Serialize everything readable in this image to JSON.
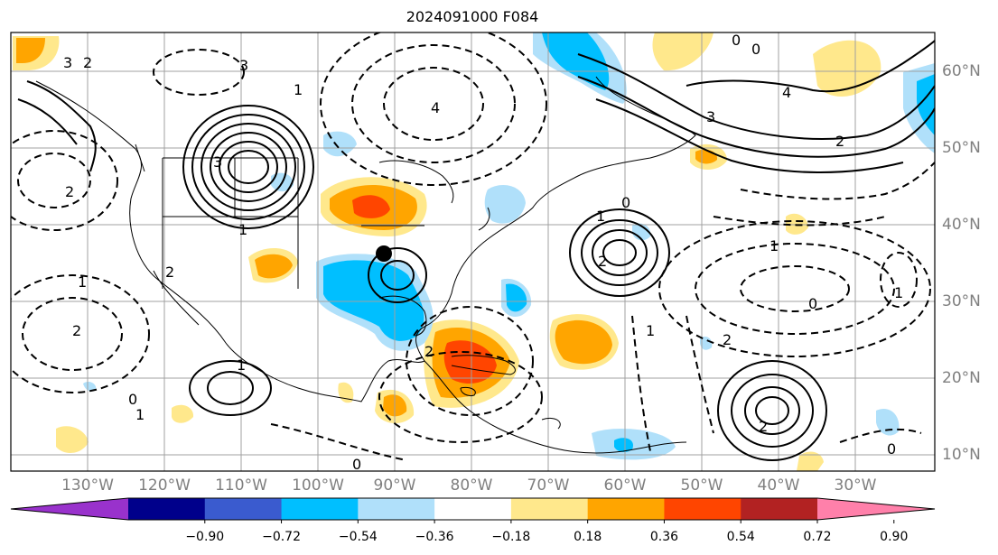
{
  "title": "2024091000 F084",
  "lon_labels": [
    "130°W",
    "120°W",
    "110°W",
    "100°W",
    "90°W",
    "80°W",
    "70°W",
    "60°W",
    "50°W",
    "40°W",
    "30°W"
  ],
  "lat_labels": [
    "60°N",
    "50°N",
    "40°N",
    "30°N",
    "20°N",
    "10°N"
  ],
  "colorbar": {
    "colors": [
      "#9932cc",
      "#00008b",
      "#3a5bcf",
      "#00bfff",
      "#b0e0fa",
      "#ffffff",
      "#ffe88c",
      "#ffa500",
      "#ff4500",
      "#b22222",
      "#ff80aa"
    ],
    "ticks": [
      "−0.90",
      "−0.72",
      "−0.54",
      "−0.36",
      "−0.18",
      "0.18",
      "0.36",
      "0.54",
      "0.72",
      "0.90"
    ]
  },
  "contour_labels": [
    "3",
    "2",
    "3",
    "4",
    "1",
    "0",
    "4",
    "0",
    "3",
    "2",
    "1",
    "1",
    "2",
    "0",
    "2",
    "3",
    "1",
    "0",
    "1",
    "2",
    "1",
    "0",
    "0",
    "1",
    "2",
    "2",
    "2",
    "1",
    "1",
    "2",
    "0"
  ],
  "marker": "black-dot"
}
